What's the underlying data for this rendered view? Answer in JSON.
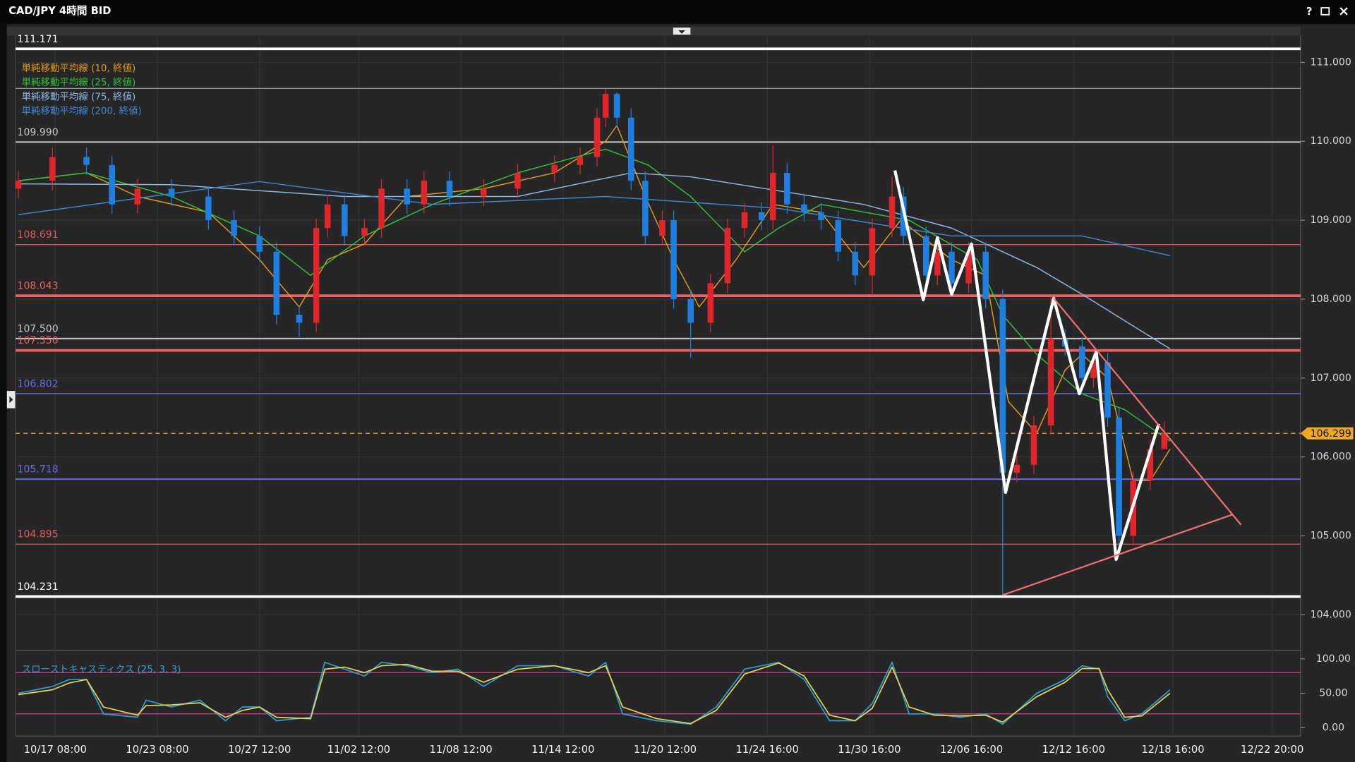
{
  "window": {
    "help_button": "?"
  },
  "chart_data": {
    "type": "candlestick",
    "title": "CAD/JPY 4時間 BID",
    "up_color": "#e0262b",
    "down_color": "#1f7fe0",
    "grid": true,
    "xlim": [
      0,
      453
    ],
    "xticks": [
      {
        "value": 14,
        "label": "10/17 08:00"
      },
      {
        "value": 50,
        "label": "10/23 08:00"
      },
      {
        "value": 86,
        "label": "10/27 12:00"
      },
      {
        "value": 121,
        "label": "11/02 12:00"
      },
      {
        "value": 157,
        "label": "11/08 12:00"
      },
      {
        "value": 193,
        "label": "11/14 12:00"
      },
      {
        "value": 229,
        "label": "11/20 12:00"
      },
      {
        "value": 265,
        "label": "11/24 16:00"
      },
      {
        "value": 301,
        "label": "11/30 16:00"
      },
      {
        "value": 337,
        "label": "12/06 16:00"
      },
      {
        "value": 373,
        "label": "12/12 16:00"
      },
      {
        "value": 408,
        "label": "12/18 16:00"
      },
      {
        "value": 443,
        "label": "12/22 20:00"
      }
    ],
    "ylim": [
      103.57,
      111.33
    ],
    "yticks": [
      {
        "value": 104,
        "label": "104.000"
      },
      {
        "value": 105,
        "label": "105.000"
      },
      {
        "value": 106,
        "label": "106.000"
      },
      {
        "value": 107,
        "label": "107.000"
      },
      {
        "value": 108,
        "label": "108.000"
      },
      {
        "value": 109,
        "label": "109.000"
      },
      {
        "value": 110,
        "label": "110.000"
      },
      {
        "value": 111,
        "label": "111.000"
      }
    ],
    "candles": {
      "x": [
        1,
        13,
        25,
        34,
        43,
        55,
        68,
        77,
        86,
        92,
        100,
        106,
        110,
        116,
        123,
        129,
        138,
        144,
        153,
        165,
        177,
        190,
        199,
        205,
        208,
        212,
        217,
        222,
        228,
        232,
        238,
        245,
        251,
        257,
        263,
        267,
        272,
        278,
        284,
        290,
        296,
        302,
        309,
        313,
        321,
        325,
        330,
        336,
        342,
        348,
        353,
        359,
        365,
        370,
        376,
        380,
        385,
        389,
        394,
        400,
        405
      ],
      "open": [
        109.4,
        109.5,
        109.8,
        109.7,
        109.2,
        109.4,
        109.3,
        109.0,
        108.8,
        108.6,
        107.8,
        107.7,
        108.9,
        109.2,
        108.8,
        108.9,
        109.4,
        109.2,
        109.5,
        109.3,
        109.4,
        109.6,
        109.7,
        109.8,
        110.3,
        110.6,
        110.3,
        109.5,
        108.8,
        109.0,
        108.0,
        107.7,
        108.2,
        108.9,
        109.1,
        109.0,
        109.6,
        109.2,
        109.1,
        109.0,
        108.6,
        108.3,
        108.9,
        109.3,
        108.8,
        108.3,
        108.6,
        108.2,
        108.6,
        108.0,
        105.8,
        105.9,
        106.4,
        107.5,
        107.4,
        107.0,
        107.2,
        106.5,
        105.0,
        105.7,
        106.1
      ],
      "high": [
        109.62,
        109.92,
        109.92,
        109.82,
        109.52,
        109.52,
        109.42,
        109.12,
        108.92,
        108.72,
        107.92,
        109.02,
        109.32,
        109.32,
        109.02,
        109.52,
        109.52,
        109.62,
        109.62,
        109.52,
        109.72,
        109.82,
        109.92,
        110.42,
        110.66,
        110.62,
        110.42,
        109.62,
        109.12,
        109.12,
        108.12,
        108.32,
        109.02,
        109.22,
        109.22,
        109.95,
        109.72,
        109.32,
        109.22,
        109.12,
        108.72,
        109.02,
        109.55,
        109.42,
        108.92,
        108.72,
        108.72,
        108.72,
        108.72,
        108.12,
        106.02,
        106.52,
        108.02,
        107.62,
        107.52,
        107.32,
        107.32,
        106.62,
        105.82,
        106.22,
        106.45
      ],
      "low": [
        109.28,
        109.38,
        109.58,
        109.08,
        109.08,
        109.18,
        108.88,
        108.68,
        108.48,
        107.68,
        107.52,
        107.58,
        108.78,
        108.68,
        108.68,
        108.78,
        109.08,
        109.08,
        109.18,
        109.18,
        109.28,
        109.48,
        109.58,
        109.68,
        110.18,
        110.18,
        109.38,
        108.68,
        108.68,
        107.88,
        107.26,
        107.58,
        108.08,
        108.78,
        108.88,
        108.88,
        109.08,
        108.98,
        108.88,
        108.48,
        108.18,
        108.05,
        108.78,
        108.68,
        108.18,
        108.18,
        108.08,
        108.08,
        107.88,
        104.25,
        105.68,
        105.78,
        106.28,
        107.28,
        106.88,
        106.88,
        106.38,
        104.85,
        104.88,
        105.58,
        106.18
      ],
      "close": [
        109.5,
        109.8,
        109.7,
        109.2,
        109.4,
        109.3,
        109.0,
        108.8,
        108.6,
        107.8,
        107.7,
        108.9,
        109.2,
        108.8,
        108.9,
        109.4,
        109.2,
        109.5,
        109.3,
        109.4,
        109.6,
        109.7,
        109.8,
        110.3,
        110.6,
        110.3,
        109.5,
        108.8,
        109.0,
        108.0,
        107.7,
        108.2,
        108.9,
        109.1,
        109.0,
        109.6,
        109.2,
        109.1,
        109.0,
        108.6,
        108.3,
        108.9,
        109.3,
        108.8,
        108.3,
        108.6,
        108.2,
        108.6,
        108.0,
        105.8,
        105.9,
        106.4,
        107.5,
        107.4,
        107.0,
        107.2,
        106.5,
        105.0,
        105.7,
        106.1,
        106.3
      ]
    },
    "series": [
      {
        "name": "単純移動平均線 (10, 終値)",
        "color": "#e09a1c",
        "x": [
          1,
          25,
          43,
          68,
          86,
          100,
          110,
          123,
          138,
          165,
          190,
          208,
          212,
          222,
          232,
          241,
          254,
          267,
          284,
          299,
          312,
          330,
          342,
          350,
          360,
          370,
          376,
          385,
          394,
          400,
          407
        ],
        "values": [
          109.5,
          109.6,
          109.3,
          109.1,
          108.5,
          107.9,
          108.5,
          108.7,
          109.3,
          109.4,
          109.6,
          110.0,
          110.2,
          109.3,
          108.5,
          107.9,
          108.5,
          109.2,
          109.1,
          108.4,
          109.0,
          108.5,
          108.3,
          106.7,
          106.3,
          107.1,
          107.3,
          107.0,
          105.7,
          105.7,
          106.1
        ]
      },
      {
        "name": "単純移動平均線 (25, 終値)",
        "color": "#2fc23a",
        "x": [
          1,
          25,
          55,
          86,
          104,
          123,
          147,
          177,
          208,
          223,
          238,
          257,
          269,
          284,
          315,
          339,
          348,
          360,
          376,
          391,
          407
        ],
        "values": [
          109.5,
          109.6,
          109.3,
          108.8,
          108.3,
          108.8,
          109.2,
          109.6,
          109.9,
          109.7,
          109.3,
          108.6,
          108.9,
          109.2,
          109.0,
          108.5,
          107.8,
          107.3,
          106.8,
          106.6,
          106.2
        ]
      },
      {
        "name": "単純移動平均線 (75, 終値)",
        "color": "#8cb8e6",
        "x": [
          1,
          55,
          116,
          177,
          217,
          238,
          299,
          330,
          360,
          376,
          407
        ],
        "values": [
          109.46,
          109.45,
          109.3,
          109.3,
          109.6,
          109.55,
          109.2,
          108.9,
          108.4,
          108.06,
          107.37
        ]
      },
      {
        "name": "単純移動平均線 (200, 終値)",
        "color": "#3f86d0",
        "x": [
          1,
          86,
          147,
          208,
          269,
          330,
          376,
          407
        ],
        "values": [
          109.07,
          109.49,
          109.2,
          109.3,
          109.15,
          108.8,
          108.8,
          108.55
        ]
      }
    ],
    "levels": [
      {
        "value": 111.171,
        "label": "111.171",
        "color": "#ffffff",
        "style": "thick"
      },
      {
        "value": 110.67,
        "color": "#a8a8a8",
        "style": "thin"
      },
      {
        "value": 109.99,
        "label": "109.990",
        "color": "#c8c8c8",
        "style": "medium"
      },
      {
        "value": 108.691,
        "label": "108.691",
        "color": "#e05a5a",
        "style": "thin"
      },
      {
        "value": 108.043,
        "label": "108.043",
        "color": "#f06060",
        "style": "thick"
      },
      {
        "value": 107.5,
        "label": "107.500",
        "color": "#c8c8c8",
        "style": "medium"
      },
      {
        "value": 107.35,
        "label": "107.350",
        "color": "#f06060",
        "style": "thick"
      },
      {
        "value": 106.802,
        "label": "106.802",
        "color": "#6a6ae6",
        "style": "thin"
      },
      {
        "value": 106.299,
        "label": "106.299",
        "color": "#f0a820",
        "style": "dashed",
        "axis_tag": true
      },
      {
        "value": 105.718,
        "label": "105.718",
        "color": "#6a6ae6",
        "style": "medium"
      },
      {
        "value": 104.895,
        "label": "104.895",
        "color": "#e05a5a",
        "style": "thin"
      },
      {
        "value": 104.231,
        "label": "104.231",
        "color": "#ffffff",
        "style": "thick"
      }
    ],
    "annotations": {
      "zigzag": {
        "color": "#ffffff",
        "x": [
          310,
          320,
          325,
          330,
          337,
          349,
          366,
          375,
          381,
          388,
          403
        ],
        "values": [
          109.63,
          107.99,
          108.78,
          108.06,
          108.7,
          105.55,
          108.01,
          106.8,
          107.33,
          104.7,
          106.42
        ]
      },
      "trendlines": [
        {
          "color": "#f07070",
          "x": [
            366,
            432
          ],
          "values": [
            108.01,
            105.14
          ]
        },
        {
          "color": "#f07070",
          "x": [
            348,
            429
          ],
          "values": [
            104.25,
            105.27
          ]
        }
      ]
    },
    "stochastic": {
      "title": "スローストキャスティクス (25, 3, 3)",
      "ylim": [
        -11,
        106
      ],
      "yticks": [
        {
          "value": 0,
          "label": "0.00"
        },
        {
          "value": 50,
          "label": "50.00"
        },
        {
          "value": 100,
          "label": "100.00"
        }
      ],
      "ref_lines": [
        80,
        20
      ],
      "ref_color": "#c03a7a",
      "series": [
        {
          "color": "#2a9fd6",
          "x": [
            1,
            13,
            19,
            25,
            31,
            43,
            46,
            55,
            65,
            74,
            80,
            86,
            92,
            104,
            109,
            116,
            123,
            129,
            138,
            147,
            156,
            165,
            177,
            190,
            202,
            208,
            214,
            226,
            238,
            247,
            257,
            269,
            278,
            287,
            296,
            302,
            309,
            315,
            324,
            333,
            342,
            348,
            360,
            370,
            376,
            382,
            385,
            391,
            397,
            407
          ],
          "values": [
            50,
            60,
            70,
            70,
            20,
            15,
            40,
            30,
            40,
            10,
            30,
            30,
            10,
            15,
            95,
            85,
            75,
            95,
            90,
            80,
            85,
            60,
            90,
            90,
            75,
            95,
            20,
            10,
            5,
            30,
            85,
            95,
            70,
            10,
            10,
            35,
            95,
            20,
            20,
            15,
            20,
            5,
            50,
            70,
            90,
            85,
            45,
            10,
            20,
            55
          ]
        },
        {
          "color": "#e8d44a",
          "x": [
            1,
            13,
            19,
            25,
            31,
            43,
            46,
            55,
            65,
            74,
            80,
            86,
            92,
            104,
            109,
            116,
            123,
            129,
            138,
            147,
            156,
            165,
            177,
            190,
            202,
            208,
            214,
            226,
            238,
            247,
            257,
            269,
            278,
            287,
            296,
            302,
            309,
            315,
            324,
            333,
            342,
            348,
            360,
            370,
            376,
            382,
            385,
            391,
            397,
            407
          ],
          "values": [
            48,
            55,
            65,
            70,
            30,
            18,
            32,
            33,
            36,
            15,
            25,
            30,
            15,
            13,
            85,
            88,
            80,
            90,
            92,
            82,
            82,
            66,
            85,
            90,
            80,
            90,
            30,
            13,
            6,
            25,
            78,
            94,
            75,
            18,
            10,
            28,
            88,
            30,
            18,
            17,
            18,
            8,
            45,
            66,
            86,
            86,
            55,
            15,
            17,
            50
          ]
        }
      ]
    }
  }
}
